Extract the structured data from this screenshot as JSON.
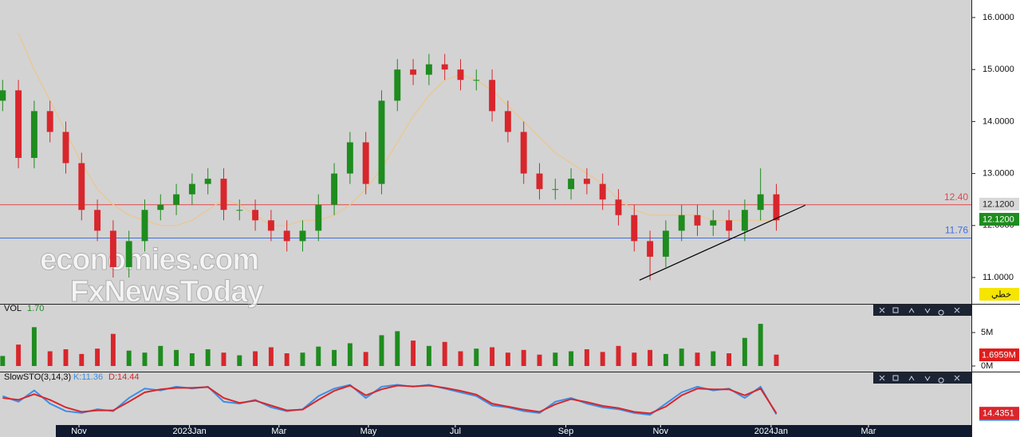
{
  "chart_data": {
    "type": "candlestick",
    "x": [
      1,
      7,
      13,
      19,
      25,
      31,
      37,
      43,
      49,
      55,
      61,
      67,
      73,
      79,
      85,
      91,
      97,
      103,
      109,
      115,
      121,
      127,
      133,
      139,
      145,
      151,
      157,
      163,
      169,
      175,
      181,
      187,
      193,
      199,
      205,
      211,
      217,
      223,
      229,
      235,
      241,
      247,
      253,
      259,
      265,
      271,
      277,
      283,
      289,
      295
    ],
    "open": [
      14.4,
      14.6,
      13.3,
      14.2,
      13.8,
      13.2,
      12.3,
      11.9,
      11.2,
      11.7,
      12.3,
      12.4,
      12.6,
      12.8,
      12.9,
      12.3,
      12.3,
      12.1,
      11.9,
      11.7,
      11.9,
      12.4,
      13.0,
      13.6,
      12.8,
      14.4,
      15.0,
      14.9,
      15.1,
      15.0,
      14.8,
      14.8,
      14.2,
      13.8,
      13.0,
      12.7,
      12.7,
      12.9,
      12.8,
      12.5,
      12.2,
      11.7,
      11.4,
      11.9,
      12.2,
      12.0,
      12.1,
      11.9,
      12.3,
      12.6
    ],
    "high": [
      14.8,
      14.8,
      14.4,
      14.4,
      14.0,
      13.4,
      12.5,
      12.1,
      11.9,
      12.5,
      12.6,
      12.8,
      13.0,
      13.1,
      13.1,
      12.5,
      12.5,
      12.3,
      12.1,
      12.1,
      12.6,
      13.2,
      13.8,
      13.8,
      14.6,
      15.2,
      15.2,
      15.3,
      15.3,
      15.2,
      15.0,
      15.0,
      14.4,
      14.0,
      13.2,
      12.9,
      13.1,
      13.1,
      13.0,
      12.7,
      12.4,
      11.9,
      12.1,
      12.4,
      12.4,
      12.3,
      12.3,
      12.5,
      13.1,
      12.8
    ],
    "low": [
      14.2,
      13.1,
      13.1,
      13.6,
      13.0,
      12.1,
      11.7,
      11.0,
      11.0,
      11.5,
      12.1,
      12.2,
      12.4,
      12.6,
      12.1,
      12.1,
      11.9,
      11.7,
      11.5,
      11.5,
      11.7,
      12.2,
      12.8,
      12.6,
      12.6,
      14.2,
      14.7,
      14.7,
      14.8,
      14.6,
      14.6,
      14.0,
      13.6,
      12.8,
      12.5,
      12.5,
      12.5,
      12.6,
      12.3,
      12.0,
      11.5,
      10.95,
      11.2,
      11.7,
      11.8,
      11.8,
      11.7,
      11.7,
      12.1,
      11.9
    ],
    "close": [
      14.6,
      13.3,
      14.2,
      13.8,
      13.2,
      12.3,
      11.9,
      11.2,
      11.7,
      12.3,
      12.4,
      12.6,
      12.8,
      12.9,
      12.3,
      12.3,
      12.1,
      11.9,
      11.7,
      11.9,
      12.4,
      13.0,
      13.6,
      12.8,
      14.4,
      15.0,
      14.9,
      15.1,
      15.0,
      14.8,
      14.8,
      14.2,
      13.8,
      13.0,
      12.7,
      12.7,
      12.9,
      12.8,
      12.5,
      12.2,
      11.7,
      11.4,
      11.9,
      12.2,
      12.0,
      12.1,
      11.9,
      12.3,
      12.6,
      12.1
    ],
    "up_color": "#1e8c1e",
    "down_color": "#d8262c",
    "moving_average": {
      "color": "#e8c898",
      "values": [
        null,
        15.7,
        15.0,
        14.4,
        13.8,
        13.2,
        12.7,
        12.4,
        12.2,
        12.1,
        12.0,
        12.0,
        12.1,
        12.3,
        12.5,
        12.4,
        12.2,
        12.0,
        12.0,
        12.1,
        12.1,
        12.2,
        12.4,
        12.7,
        13.1,
        13.6,
        14.1,
        14.5,
        14.8,
        14.9,
        14.8,
        14.6,
        14.3,
        14.0,
        13.7,
        13.4,
        13.2,
        13.0,
        12.8,
        12.5,
        12.3,
        12.2,
        12.2,
        12.2,
        12.2,
        12.1,
        12.1,
        12.1,
        12.1,
        12.1
      ]
    },
    "trendline": {
      "color": "#000000",
      "x": [
        243,
        306
      ],
      "y": [
        10.95,
        12.39
      ]
    },
    "hlines": [
      {
        "value": 12.4,
        "label": "12.40",
        "color": "#e0474c"
      },
      {
        "value": 11.76,
        "label": "11.76",
        "color": "#3d6ee8"
      }
    ],
    "xlim": [
      0,
      369.1
    ],
    "xticks": [
      {
        "value": 30,
        "label": "Nov"
      },
      {
        "value": 72,
        "label": "2023Jan"
      },
      {
        "value": 106,
        "label": "Mar"
      },
      {
        "value": 140,
        "label": "May"
      },
      {
        "value": 173,
        "label": "Jul"
      },
      {
        "value": 215,
        "label": "Sep"
      },
      {
        "value": 251,
        "label": "Nov"
      },
      {
        "value": 293,
        "label": "2024Jan"
      },
      {
        "value": 330,
        "label": "Mar"
      }
    ],
    "ylim": [
      10.494,
      16.337
    ],
    "yticks": [
      {
        "value": 11,
        "label": "11.0000"
      },
      {
        "value": 12,
        "label": "12.0000"
      },
      {
        "value": 13,
        "label": "13.0000"
      },
      {
        "value": 14,
        "label": "14.0000"
      },
      {
        "value": 15,
        "label": "15.0000"
      },
      {
        "value": 16,
        "label": "16.0000"
      }
    ],
    "badges": [
      {
        "value": 12.12,
        "label": "12.1200",
        "color": "#d8d8d8",
        "text_color": "#222222",
        "offset": -19
      },
      {
        "value": 12.12,
        "label": "12.1200",
        "color": "#1e8c1e",
        "text_color": "#ffffff",
        "offset": 0
      }
    ],
    "mode_label": "خطي",
    "watermark": [
      "economies.com",
      "FxNewsToday"
    ],
    "volume": {
      "title": "VOL",
      "value_text": "1.70",
      "last_text": "1.6959M",
      "values": [
        1.5,
        3.2,
        5.8,
        2.2,
        2.5,
        1.8,
        2.6,
        4.8,
        2.3,
        2.0,
        3.0,
        2.4,
        1.9,
        2.5,
        2.0,
        1.6,
        2.2,
        2.8,
        1.9,
        2.0,
        2.9,
        2.4,
        3.4,
        2.1,
        4.6,
        5.2,
        3.8,
        3.0,
        3.6,
        2.2,
        2.6,
        2.8,
        2.0,
        2.4,
        1.7,
        2.0,
        2.2,
        2.5,
        2.1,
        3.0,
        2.0,
        2.4,
        1.8,
        2.6,
        2.0,
        2.2,
        1.9,
        4.2,
        6.3,
        1.7
      ],
      "ylim": [
        -0.36,
        7.86
      ],
      "yticks": [
        {
          "value": 0,
          "label": "0M"
        },
        {
          "value": 5,
          "label": "5M"
        }
      ]
    },
    "stochastic": {
      "title": "SlowSTO(3,14,3)",
      "k_text": "K:11.36",
      "d_text": "D:14.44",
      "ylim": [
        -17,
        123
      ],
      "series": [
        {
          "name": "K",
          "color": "#3a8ee6",
          "last": 11.3608,
          "values": [
            60,
            45,
            75,
            40,
            20,
            15,
            25,
            20,
            55,
            80,
            75,
            85,
            80,
            85,
            45,
            40,
            50,
            30,
            20,
            25,
            60,
            80,
            90,
            55,
            85,
            90,
            85,
            90,
            80,
            70,
            60,
            35,
            30,
            20,
            15,
            45,
            55,
            40,
            30,
            25,
            15,
            10,
            40,
            70,
            85,
            75,
            80,
            55,
            85,
            11.36
          ]
        },
        {
          "name": "D",
          "color": "#d8262c",
          "last": 14.4351,
          "values": [
            55,
            50,
            65,
            50,
            30,
            18,
            22,
            22,
            45,
            70,
            78,
            82,
            82,
            84,
            55,
            42,
            48,
            35,
            22,
            24,
            50,
            74,
            88,
            62,
            78,
            88,
            86,
            88,
            82,
            74,
            64,
            40,
            32,
            24,
            18,
            38,
            52,
            44,
            34,
            28,
            18,
            14,
            32,
            62,
            80,
            78,
            78,
            62,
            80,
            14.44
          ]
        }
      ]
    }
  }
}
